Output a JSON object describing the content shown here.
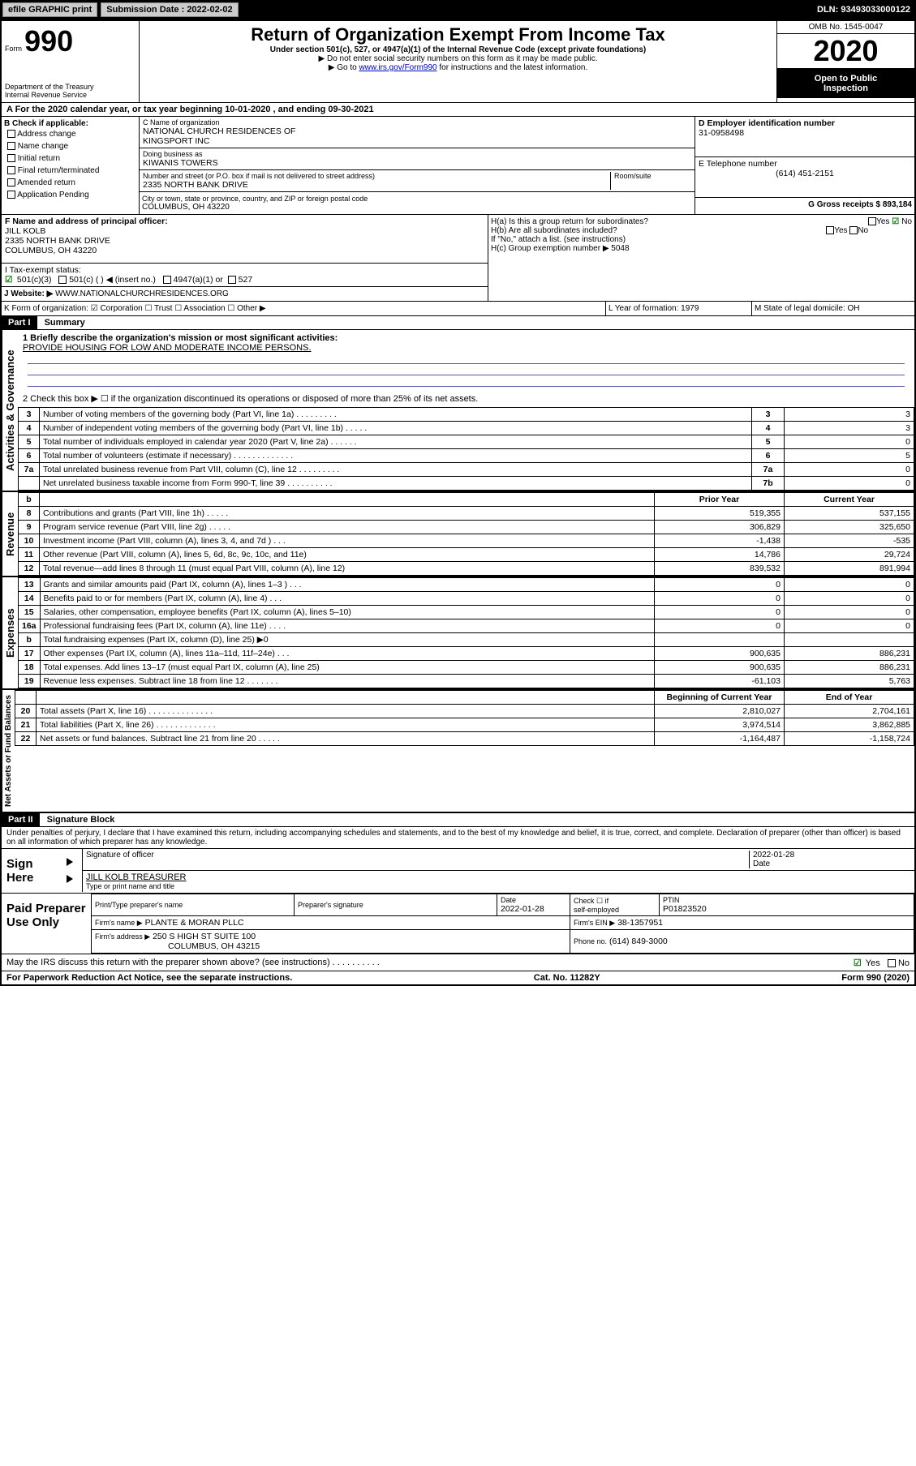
{
  "topbar": {
    "efile": "efile GRAPHIC print",
    "submission_label": "Submission Date : 2022-02-02",
    "dln_label": "DLN: 93493033000122"
  },
  "header": {
    "form_prefix": "Form",
    "form_no": "990",
    "dept1": "Department of the Treasury",
    "dept2": "Internal Revenue Service",
    "title": "Return of Organization Exempt From Income Tax",
    "sub1": "Under section 501(c), 527, or 4947(a)(1) of the Internal Revenue Code (except private foundations)",
    "sub2": "▶ Do not enter social security numbers on this form as it may be made public.",
    "sub3a": "▶ Go to ",
    "sub3link": "www.irs.gov/Form990",
    "sub3b": " for instructions and the latest information.",
    "omb": "OMB No. 1545-0047",
    "year": "2020",
    "inspect1": "Open to Public",
    "inspect2": "Inspection"
  },
  "lineA": "A   For the 2020 calendar year, or tax year beginning 10-01-2020    , and ending 09-30-2021",
  "boxB": {
    "title": "B Check if applicable:",
    "items": [
      "Address change",
      "Name change",
      "Initial return",
      "Final return/terminated",
      "Amended return",
      "Application Pending"
    ]
  },
  "boxC": {
    "label": "C Name of organization",
    "name1": "NATIONAL CHURCH RESIDENCES OF",
    "name2": "KINGSPORT INC",
    "dba_label": "Doing business as",
    "dba": "KIWANIS TOWERS",
    "addr_label": "Number and street (or P.O. box if mail is not delivered to street address)",
    "room_label": "Room/suite",
    "addr": "2335 NORTH BANK DRIVE",
    "city_label": "City or town, state or province, country, and ZIP or foreign postal code",
    "city": "COLUMBUS, OH  43220"
  },
  "boxD": {
    "label": "D Employer identification number",
    "value": "31-0958498"
  },
  "boxE": {
    "label": "E Telephone number",
    "value": "(614) 451-2151"
  },
  "boxF": {
    "label": "F Name and address of principal officer:",
    "name": "JILL KOLB",
    "addr1": "2335 NORTH BANK DRIVE",
    "addr2": "COLUMBUS, OH  43220"
  },
  "boxG": {
    "label": "G Gross receipts $ 893,184"
  },
  "boxH": {
    "ha": "H(a)  Is this a group return for subordinates?",
    "hb": "H(b)  Are all subordinates included?",
    "hb_note": "If \"No,\" attach a list. (see instructions)",
    "hc": "H(c)  Group exemption number ▶   5048",
    "yes": "Yes",
    "no": "No"
  },
  "taxexempt": {
    "label": "I    Tax-exempt status:",
    "opts": [
      "501(c)(3)",
      "501(c) (  ) ◀ (insert no.)",
      "4947(a)(1) or",
      "527"
    ]
  },
  "website": {
    "label": "J    Website: ▶",
    "value": "WWW.NATIONALCHURCHRESIDENCES.ORG"
  },
  "lineK": "K Form of organization:    ☑ Corporation  ☐ Trust  ☐ Association  ☐ Other ▶",
  "lineL": "L Year of formation: 1979",
  "lineM": "M State of legal domicile: OH",
  "part1": {
    "num": "Part I",
    "title": "Summary"
  },
  "sectA": {
    "side": "Activities & Governance",
    "l1a": "1  Briefly describe the organization's mission or most significant activities:",
    "l1b": "PROVIDE HOUSING FOR LOW AND MODERATE INCOME PERSONS.",
    "l2": "2    Check this box ▶ ☐  if the organization discontinued its operations or disposed of more than 25% of its net assets.",
    "rows": [
      {
        "n": "3",
        "d": "Number of voting members of the governing body (Part VI, line 1a)  .    .    .    .    .    .    .    .    .",
        "rn": "3",
        "v": "3"
      },
      {
        "n": "4",
        "d": "Number of independent voting members of the governing body (Part VI, line 1b)  .    .    .    .    .",
        "rn": "4",
        "v": "3"
      },
      {
        "n": "5",
        "d": "Total number of individuals employed in calendar year 2020 (Part V, line 2a)  .    .    .    .    .    .",
        "rn": "5",
        "v": "0"
      },
      {
        "n": "6",
        "d": "Total number of volunteers (estimate if necessary)  .    .    .    .    .    .    .    .    .    .    .    .    .",
        "rn": "6",
        "v": "5"
      },
      {
        "n": "7a",
        "d": "Total unrelated business revenue from Part VIII, column (C), line 12  .    .    .    .    .    .    .    .    .",
        "rn": "7a",
        "v": "0"
      },
      {
        "n": "",
        "d": "Net unrelated business taxable income from Form 990-T, line 39  .    .    .    .    .    .    .    .    .    .",
        "rn": "7b",
        "v": "0"
      }
    ]
  },
  "sectRev": {
    "side": "Revenue",
    "col_prior": "Prior Year",
    "col_curr": "Current Year",
    "rows": [
      {
        "n": "8",
        "d": "Contributions and grants (Part VIII, line 1h)   .    .    .    .    .",
        "p": "519,355",
        "c": "537,155"
      },
      {
        "n": "9",
        "d": "Program service revenue (Part VIII, line 2g)   .    .    .    .    .",
        "p": "306,829",
        "c": "325,650"
      },
      {
        "n": "10",
        "d": "Investment income (Part VIII, column (A), lines 3, 4, and 7d )   .    .    .",
        "p": "-1,438",
        "c": "-535"
      },
      {
        "n": "11",
        "d": "Other revenue (Part VIII, column (A), lines 5, 6d, 8c, 9c, 10c, and 11e)",
        "p": "14,786",
        "c": "29,724"
      },
      {
        "n": "12",
        "d": "Total revenue—add lines 8 through 11 (must equal Part VIII, column (A), line 12)",
        "p": "839,532",
        "c": "891,994"
      }
    ]
  },
  "sectExp": {
    "side": "Expenses",
    "rows": [
      {
        "n": "13",
        "d": "Grants and similar amounts paid (Part IX, column (A), lines 1–3 )   .    .    .",
        "p": "0",
        "c": "0"
      },
      {
        "n": "14",
        "d": "Benefits paid to or for members (Part IX, column (A), line 4)   .    .    .",
        "p": "0",
        "c": "0"
      },
      {
        "n": "15",
        "d": "Salaries, other compensation, employee benefits (Part IX, column (A), lines 5–10)",
        "p": "0",
        "c": "0"
      },
      {
        "n": "16a",
        "d": "Professional fundraising fees (Part IX, column (A), line 11e)   .    .    .    .",
        "p": "0",
        "c": "0"
      },
      {
        "n": "b",
        "d": "Total fundraising expenses (Part IX, column (D), line 25) ▶0",
        "p": "",
        "c": ""
      },
      {
        "n": "17",
        "d": "Other expenses (Part IX, column (A), lines 11a–11d, 11f–24e)   .    .    .",
        "p": "900,635",
        "c": "886,231"
      },
      {
        "n": "18",
        "d": "Total expenses. Add lines 13–17 (must equal Part IX, column (A), line 25)",
        "p": "900,635",
        "c": "886,231"
      },
      {
        "n": "19",
        "d": "Revenue less expenses. Subtract line 18 from line 12   .    .    .    .    .    .    .",
        "p": "-61,103",
        "c": "5,763"
      }
    ]
  },
  "sectNet": {
    "side": "Net Assets or Fund Balances",
    "col_begin": "Beginning of Current Year",
    "col_end": "End of Year",
    "rows": [
      {
        "n": "20",
        "d": "Total assets (Part X, line 16)   .    .    .    .    .    .    .    .    .    .    .    .    .    .",
        "p": "2,810,027",
        "c": "2,704,161"
      },
      {
        "n": "21",
        "d": "Total liabilities (Part X, line 26)   .    .    .    .    .    .    .    .    .    .    .    .    .",
        "p": "3,974,514",
        "c": "3,862,885"
      },
      {
        "n": "22",
        "d": "Net assets or fund balances. Subtract line 21 from line 20   .    .    .    .    .",
        "p": "-1,164,487",
        "c": "-1,158,724"
      }
    ]
  },
  "part2": {
    "num": "Part II",
    "title": "Signature Block"
  },
  "perjury": "Under penalties of perjury, I declare that I have examined this return, including accompanying schedules and statements, and to the best of my knowledge and belief, it is true, correct, and complete. Declaration of preparer (other than officer) is based on all information of which preparer has any knowledge.",
  "sign": {
    "label": "Sign Here",
    "sig_label": "Signature of officer",
    "date_label": "Date",
    "date": "2022-01-28",
    "name": "JILL KOLB  TREASURER",
    "name_label": "Type or print name and title"
  },
  "paid": {
    "label": "Paid Preparer Use Only",
    "c1": "Print/Type preparer's name",
    "c2": "Preparer's signature",
    "c3": "Date",
    "c3v": "2022-01-28",
    "c4a": "Check ☐  if",
    "c4b": "self-employed",
    "c5": "PTIN",
    "c5v": "P01823520",
    "firm_label": "Firm's name     ▶",
    "firm": "PLANTE & MORAN PLLC",
    "ein_label": "Firm's EIN ▶",
    "ein": "38-1357951",
    "addr_label": "Firm's address ▶",
    "addr1": "250 S HIGH ST SUITE 100",
    "addr2": "COLUMBUS, OH  43215",
    "phone_label": "Phone no.",
    "phone": "(614) 849-3000"
  },
  "discuss": "May the IRS discuss this return with the preparer shown above? (see instructions)   .    .    .    .    .    .    .    .    .    .",
  "discuss_yes": "Yes",
  "discuss_no": "No",
  "footer": {
    "left": "For Paperwork Reduction Act Notice, see the separate instructions.",
    "mid": "Cat. No. 11282Y",
    "right": "Form 990 (2020)"
  }
}
